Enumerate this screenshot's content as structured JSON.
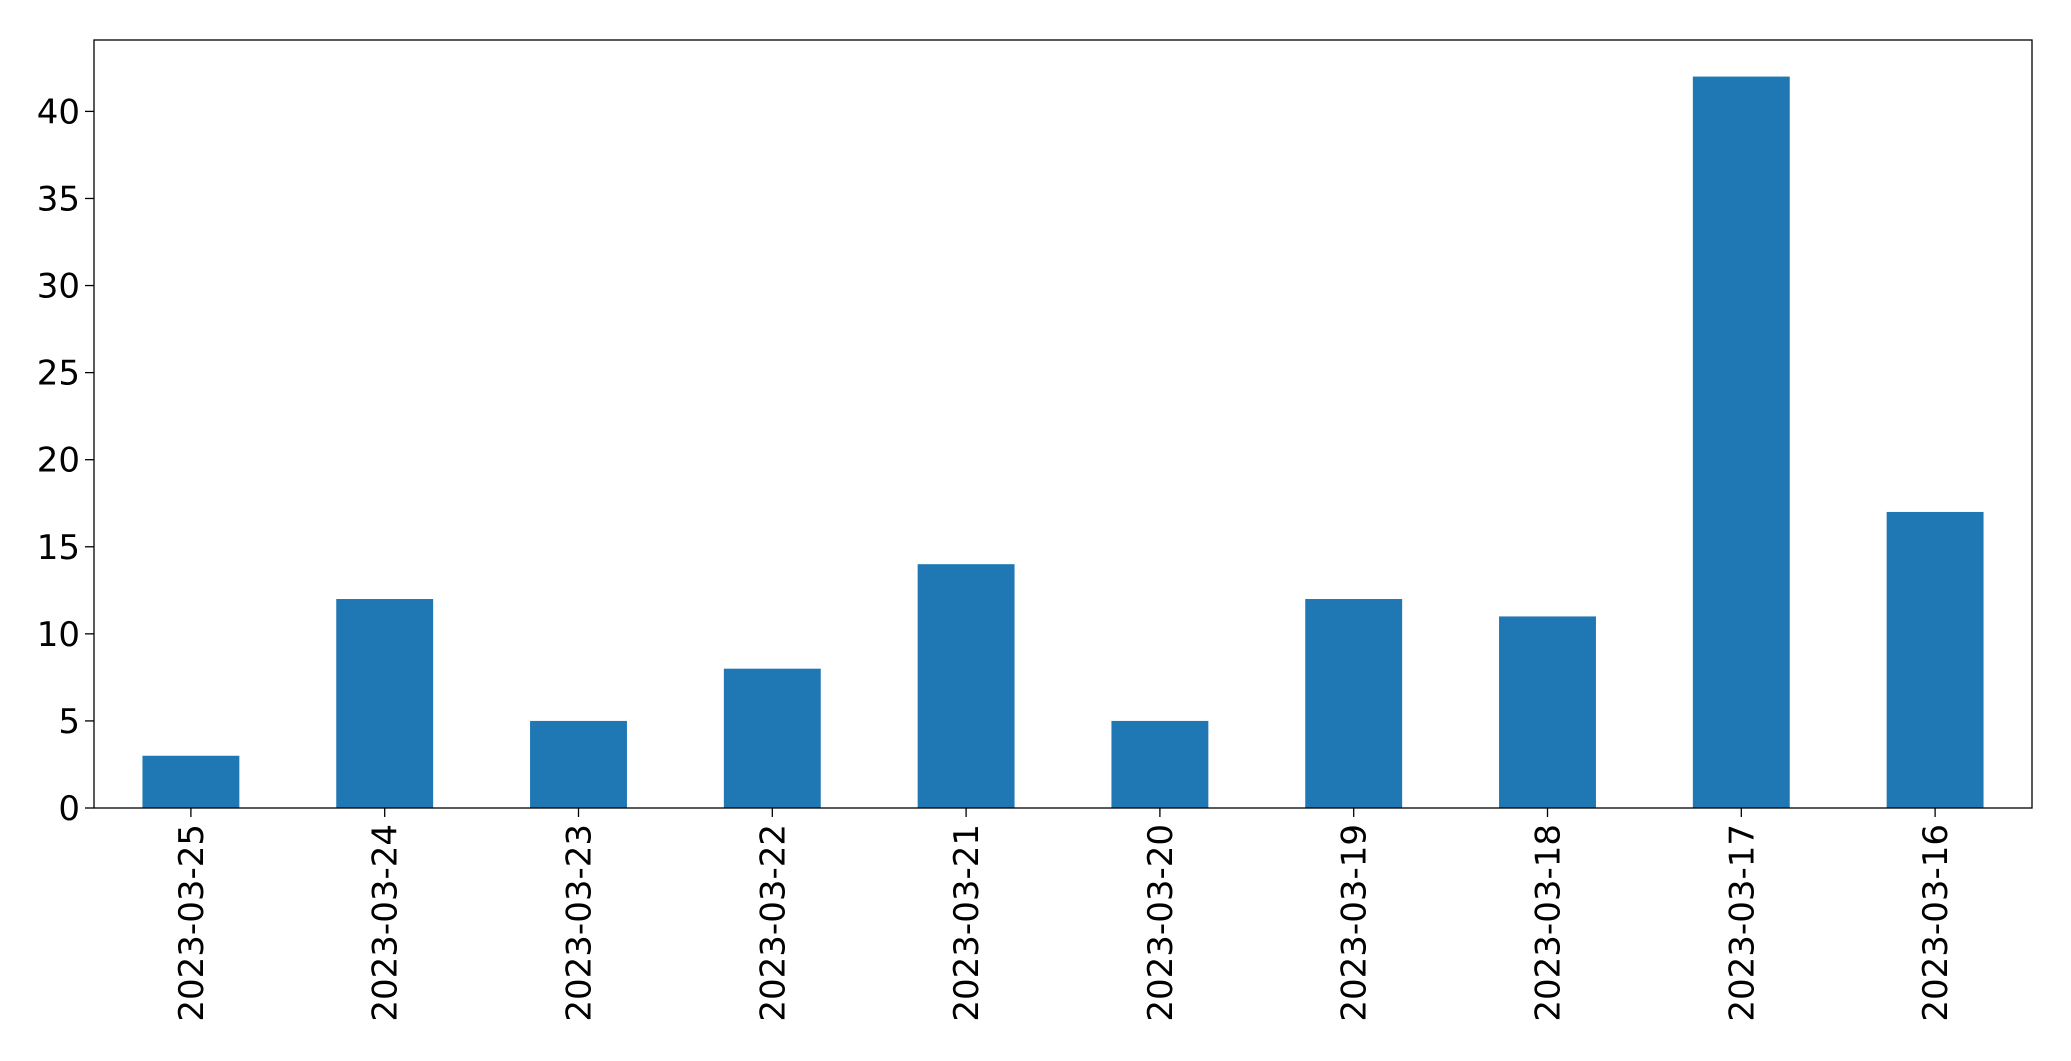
{
  "chart_data": {
    "type": "bar",
    "categories": [
      "2023-03-25",
      "2023-03-24",
      "2023-03-23",
      "2023-03-22",
      "2023-03-21",
      "2023-03-20",
      "2023-03-19",
      "2023-03-18",
      "2023-03-17",
      "2023-03-16"
    ],
    "values": [
      3,
      12,
      5,
      8,
      14,
      5,
      12,
      11,
      42,
      17
    ],
    "color": "#1f77b4",
    "ylim": [
      0,
      44.1
    ],
    "yticks": [
      0,
      5,
      10,
      15,
      20,
      25,
      30,
      35,
      40
    ],
    "grid": false
  }
}
